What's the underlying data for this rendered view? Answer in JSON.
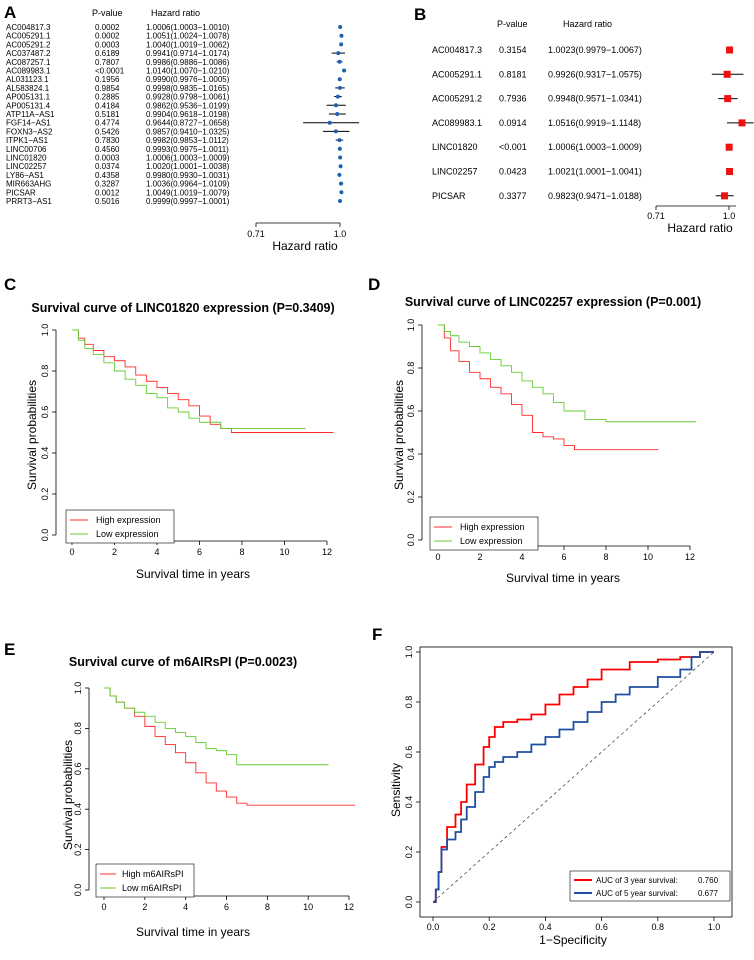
{
  "colors": {
    "red": "#ff2a2a",
    "green": "#66cc33",
    "blue_dot": "#1f5fb4",
    "roc_red": "#ff0000",
    "roc_blue": "#1f4fa0",
    "square": "#ee1111"
  },
  "chart_data": [
    {
      "id": "A",
      "type": "forest",
      "col_headers": [
        "P-value",
        "Hazard ratio"
      ],
      "xlabel": "Hazard ratio",
      "ticks": [
        "0.71",
        "1.0"
      ],
      "xlim": [
        0.71,
        1.05
      ],
      "rows": [
        {
          "name": "AC004817.3",
          "p": "0.0002",
          "hr_text": "1.0006(1.0003−1.0010)",
          "hr": 1.0006,
          "lo": 1.0003,
          "hi": 1.001
        },
        {
          "name": "AC005291.1",
          "p": "0.0002",
          "hr_text": "1.0051(1.0024−1.0078)",
          "hr": 1.0051,
          "lo": 1.0024,
          "hi": 1.0078
        },
        {
          "name": "AC005291.2",
          "p": "0.0003",
          "hr_text": "1.0040(1.0019−1.0062)",
          "hr": 1.004,
          "lo": 1.0019,
          "hi": 1.0062
        },
        {
          "name": "AC037487.2",
          "p": "0.6189",
          "hr_text": "0.9941(0.9714−1.0174)",
          "hr": 0.9941,
          "lo": 0.9714,
          "hi": 1.0174
        },
        {
          "name": "AC087257.1",
          "p": "0.7807",
          "hr_text": "0.9986(0.9886−1.0086)",
          "hr": 0.9986,
          "lo": 0.9886,
          "hi": 1.0086
        },
        {
          "name": "AC089983.1",
          "p": "<0.0001",
          "hr_text": "1.0140(1.0070−1.0210)",
          "hr": 1.014,
          "lo": 1.007,
          "hi": 1.021
        },
        {
          "name": "AL031123.1",
          "p": "0.1956",
          "hr_text": "0.9990(0.9976−1.0005)",
          "hr": 0.999,
          "lo": 0.9976,
          "hi": 1.0005
        },
        {
          "name": "AL583824.1",
          "p": "0.9854",
          "hr_text": "0.9998(0.9835−1.0165)",
          "hr": 0.9998,
          "lo": 0.9835,
          "hi": 1.0165
        },
        {
          "name": "AP005131.1",
          "p": "0.2885",
          "hr_text": "0.9928(0.9798−1.0061)",
          "hr": 0.9928,
          "lo": 0.9798,
          "hi": 1.0061
        },
        {
          "name": "AP005131.4",
          "p": "0.4184",
          "hr_text": "0.9862(0.9536−1.0199)",
          "hr": 0.9862,
          "lo": 0.9536,
          "hi": 1.0199
        },
        {
          "name": "ATP11A−AS1",
          "p": "0.5181",
          "hr_text": "0.9904(0.9618−1.0198)",
          "hr": 0.9904,
          "lo": 0.9618,
          "hi": 1.0198
        },
        {
          "name": "FGF14−AS1",
          "p": "0.4774",
          "hr_text": "0.9644(0.8727−1.0658)",
          "hr": 0.9644,
          "lo": 0.8727,
          "hi": 1.0658
        },
        {
          "name": "FOXN3−AS2",
          "p": "0.5426",
          "hr_text": "0.9857(0.9410−1.0325)",
          "hr": 0.9857,
          "lo": 0.941,
          "hi": 1.0325
        },
        {
          "name": "ITPK1−AS1",
          "p": "0.7830",
          "hr_text": "0.9982(0.9853−1.0112)",
          "hr": 0.9982,
          "lo": 0.9853,
          "hi": 1.0112
        },
        {
          "name": "LINC00706",
          "p": "0.4560",
          "hr_text": "0.9993(0.9975−1.0011)",
          "hr": 0.9993,
          "lo": 0.9975,
          "hi": 1.0011
        },
        {
          "name": "LINC01820",
          "p": "0.0003",
          "hr_text": "1.0006(1.0003−1.0009)",
          "hr": 1.0006,
          "lo": 1.0003,
          "hi": 1.0009
        },
        {
          "name": "LINC02257",
          "p": "0.0374",
          "hr_text": "1.0020(1.0001−1.0038)",
          "hr": 1.002,
          "lo": 1.0001,
          "hi": 1.0038
        },
        {
          "name": "LY86−AS1",
          "p": "0.4358",
          "hr_text": "0.9980(0.9930−1.0031)",
          "hr": 0.998,
          "lo": 0.993,
          "hi": 1.0031
        },
        {
          "name": "MIR663AHG",
          "p": "0.3287",
          "hr_text": "1.0036(0.9964−1.0109)",
          "hr": 1.0036,
          "lo": 0.9964,
          "hi": 1.0109
        },
        {
          "name": "PICSAR",
          "p": "0.0012",
          "hr_text": "1.0049(1.0019−1.0079)",
          "hr": 1.0049,
          "lo": 1.0019,
          "hi": 1.0079
        },
        {
          "name": "PRRT3−AS1",
          "p": "0.5016",
          "hr_text": "0.9999(0.9997−1.0001)",
          "hr": 0.9999,
          "lo": 0.9997,
          "hi": 1.0001
        }
      ]
    },
    {
      "id": "B",
      "type": "forest",
      "col_headers": [
        "P-value",
        "Hazard ratio"
      ],
      "xlabel": "Hazard ratio",
      "ticks": [
        "0.71",
        "1.0"
      ],
      "xlim": [
        0.71,
        1.05
      ],
      "rows": [
        {
          "name": "AC004817.3",
          "p": "0.3154",
          "hr_text": "1.0023(0.9979−1.0067)",
          "hr": 1.0023,
          "lo": 0.9979,
          "hi": 1.0067
        },
        {
          "name": "AC005291.1",
          "p": "0.8181",
          "hr_text": "0.9926(0.9317−1.0575)",
          "hr": 0.9926,
          "lo": 0.9317,
          "hi": 1.0575
        },
        {
          "name": "AC005291.2",
          "p": "0.7936",
          "hr_text": "0.9948(0.9571−1.0341)",
          "hr": 0.9948,
          "lo": 0.9571,
          "hi": 1.0341
        },
        {
          "name": "AC089983.1",
          "p": "0.0914",
          "hr_text": "1.0516(0.9919−1.1148)",
          "hr": 1.0516,
          "lo": 0.9919,
          "hi": 1.1148
        },
        {
          "name": "LINC01820",
          "p": "<0.001",
          "hr_text": "1.0006(1.0003−1.0009)",
          "hr": 1.0006,
          "lo": 1.0003,
          "hi": 1.0009
        },
        {
          "name": "LINC02257",
          "p": "0.0423",
          "hr_text": "1.0021(1.0001−1.0041)",
          "hr": 1.0021,
          "lo": 1.0001,
          "hi": 1.0041
        },
        {
          "name": "PICSAR",
          "p": "0.3377",
          "hr_text": "0.9823(0.9471−1.0188)",
          "hr": 0.9823,
          "lo": 0.9471,
          "hi": 1.0188
        }
      ]
    },
    {
      "id": "C",
      "type": "line",
      "title": "Survival curve of LINC01820 expression (P=0.3409)",
      "xlabel": "Survival time in years",
      "ylabel": "Survival probabilities",
      "xlim": [
        0,
        12
      ],
      "ylim": [
        0,
        1
      ],
      "xticks": [
        0,
        2,
        4,
        6,
        8,
        10,
        12
      ],
      "yticks": [
        "0.0",
        "0.2",
        "0.4",
        "0.6",
        "0.8",
        "1.0"
      ],
      "legend": [
        "High expression",
        "Low expression"
      ],
      "series": [
        {
          "name": "High expression",
          "color": "red",
          "x": [
            0,
            0.3,
            0.6,
            1.0,
            1.5,
            2.0,
            2.5,
            3.0,
            3.5,
            4.0,
            4.5,
            5.0,
            5.5,
            6.0,
            6.5,
            7.0,
            7.5,
            9.0,
            12.3
          ],
          "y": [
            1.0,
            0.96,
            0.93,
            0.9,
            0.87,
            0.85,
            0.82,
            0.78,
            0.75,
            0.72,
            0.69,
            0.66,
            0.63,
            0.58,
            0.54,
            0.52,
            0.5,
            0.5,
            0.5
          ]
        },
        {
          "name": "Low expression",
          "color": "green",
          "x": [
            0,
            0.3,
            0.6,
            1.0,
            1.5,
            2.0,
            2.5,
            3.0,
            3.5,
            4.0,
            4.5,
            5.0,
            5.5,
            6.0,
            7.0,
            8.0,
            11.0
          ],
          "y": [
            1.0,
            0.95,
            0.91,
            0.88,
            0.84,
            0.8,
            0.76,
            0.73,
            0.69,
            0.67,
            0.62,
            0.6,
            0.57,
            0.55,
            0.52,
            0.52,
            0.52
          ]
        }
      ]
    },
    {
      "id": "D",
      "type": "line",
      "title": "Survival curve of LINC02257 expression (P=0.001)",
      "xlabel": "Survival time in years",
      "ylabel": "Survival probabilities",
      "xlim": [
        0,
        12
      ],
      "ylim": [
        0,
        1
      ],
      "xticks": [
        0,
        2,
        4,
        6,
        8,
        10,
        12
      ],
      "yticks": [
        "0.0",
        "0.2",
        "0.4",
        "0.6",
        "0.8",
        "1.0"
      ],
      "legend": [
        "High expression",
        "Low expression"
      ],
      "series": [
        {
          "name": "High expression",
          "color": "red",
          "x": [
            0,
            0.3,
            0.6,
            1.0,
            1.5,
            2.0,
            2.5,
            3.0,
            3.5,
            4.0,
            4.5,
            5.0,
            5.5,
            6.0,
            6.5,
            7.0,
            10.5
          ],
          "y": [
            1.0,
            0.94,
            0.88,
            0.83,
            0.78,
            0.75,
            0.71,
            0.68,
            0.63,
            0.58,
            0.5,
            0.48,
            0.47,
            0.44,
            0.42,
            0.42,
            0.42
          ]
        },
        {
          "name": "Low expression",
          "color": "green",
          "x": [
            0,
            0.3,
            0.6,
            1.0,
            1.5,
            2.0,
            2.5,
            3.0,
            3.5,
            4.0,
            4.5,
            5.0,
            5.5,
            6.0,
            7.0,
            8.0,
            9.0,
            12.3
          ],
          "y": [
            1.0,
            0.97,
            0.95,
            0.92,
            0.9,
            0.87,
            0.84,
            0.81,
            0.78,
            0.74,
            0.71,
            0.68,
            0.64,
            0.6,
            0.56,
            0.55,
            0.55,
            0.55
          ]
        }
      ]
    },
    {
      "id": "E",
      "type": "line",
      "title": "Survival curve of m6AIRsPI (P=0.0023)",
      "xlabel": "Survival time in years",
      "ylabel": "Survival probabilities",
      "xlim": [
        0,
        12
      ],
      "ylim": [
        0,
        1
      ],
      "xticks": [
        0,
        2,
        4,
        6,
        8,
        10,
        12
      ],
      "yticks": [
        "0.0",
        "0.2",
        "0.4",
        "0.6",
        "0.8",
        "1.0"
      ],
      "legend": [
        "High m6AIRsPI",
        "Low m6AIRsPI"
      ],
      "series": [
        {
          "name": "High m6AIRsPI",
          "color": "red",
          "x": [
            0,
            0.3,
            0.6,
            1.0,
            1.5,
            2.0,
            2.5,
            3.0,
            3.5,
            4.0,
            4.5,
            5.0,
            5.5,
            6.0,
            6.5,
            7.0,
            9.0,
            12.3
          ],
          "y": [
            1.0,
            0.96,
            0.93,
            0.9,
            0.86,
            0.81,
            0.76,
            0.72,
            0.68,
            0.63,
            0.58,
            0.53,
            0.49,
            0.46,
            0.43,
            0.42,
            0.42,
            0.42
          ]
        },
        {
          "name": "Low m6AIRsPI",
          "color": "green",
          "x": [
            0,
            0.3,
            0.6,
            1.0,
            1.5,
            2.0,
            2.5,
            3.0,
            3.5,
            4.0,
            4.5,
            5.0,
            5.5,
            6.0,
            6.5,
            7.0,
            11.0
          ],
          "y": [
            1.0,
            0.96,
            0.93,
            0.9,
            0.88,
            0.86,
            0.83,
            0.8,
            0.78,
            0.76,
            0.73,
            0.7,
            0.69,
            0.67,
            0.62,
            0.62,
            0.62
          ]
        }
      ]
    },
    {
      "id": "F",
      "type": "line",
      "subtype": "roc",
      "xlabel": "1−Specificity",
      "ylabel": "Sensitivity",
      "xlim": [
        0,
        1
      ],
      "ylim": [
        0,
        1
      ],
      "xticks": [
        "0.0",
        "0.2",
        "0.4",
        "0.6",
        "0.8",
        "1.0"
      ],
      "yticks": [
        "0.0",
        "0.2",
        "0.4",
        "0.6",
        "0.8",
        "1.0"
      ],
      "legend": [
        {
          "label": "AUC of 3 year survival:",
          "value": "0.760"
        },
        {
          "label": "AUC of 5 year survival:",
          "value": "0.677"
        }
      ],
      "series": [
        {
          "name": "AUC of 3 year survival",
          "color": "roc_red",
          "x": [
            0,
            0.01,
            0.02,
            0.03,
            0.05,
            0.08,
            0.1,
            0.12,
            0.15,
            0.18,
            0.2,
            0.22,
            0.25,
            0.3,
            0.35,
            0.4,
            0.45,
            0.5,
            0.55,
            0.6,
            0.7,
            0.8,
            0.88,
            0.95,
            1.0
          ],
          "y": [
            0,
            0.05,
            0.12,
            0.22,
            0.3,
            0.35,
            0.4,
            0.47,
            0.55,
            0.62,
            0.66,
            0.7,
            0.72,
            0.73,
            0.75,
            0.79,
            0.83,
            0.86,
            0.89,
            0.93,
            0.96,
            0.97,
            0.98,
            1.0,
            1.0
          ]
        },
        {
          "name": "AUC of 5 year survival",
          "color": "roc_blue",
          "x": [
            0,
            0.01,
            0.02,
            0.03,
            0.05,
            0.08,
            0.1,
            0.12,
            0.15,
            0.18,
            0.2,
            0.22,
            0.25,
            0.3,
            0.35,
            0.4,
            0.45,
            0.5,
            0.55,
            0.6,
            0.65,
            0.7,
            0.8,
            0.88,
            0.92,
            0.95,
            1.0
          ],
          "y": [
            0,
            0.05,
            0.12,
            0.21,
            0.25,
            0.28,
            0.33,
            0.38,
            0.44,
            0.5,
            0.54,
            0.56,
            0.58,
            0.6,
            0.63,
            0.66,
            0.69,
            0.72,
            0.76,
            0.8,
            0.83,
            0.86,
            0.9,
            0.93,
            0.98,
            1.0,
            1.0
          ]
        }
      ]
    }
  ]
}
